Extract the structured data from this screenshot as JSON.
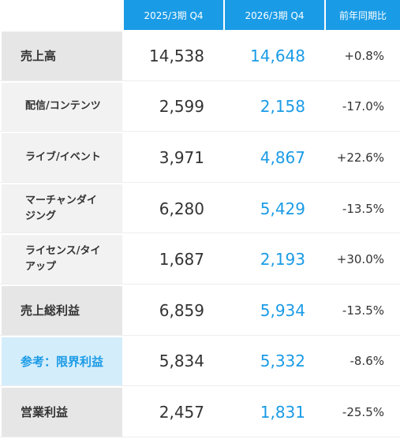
{
  "table": {
    "columns": [
      "2025/3期 Q4",
      "2026/3期 Q4",
      "前年同期比"
    ],
    "rows": [
      {
        "label": "売上高",
        "kind": "main",
        "cells": [
          "14,538",
          "14,648",
          "+0.8%"
        ]
      },
      {
        "label": "配信/コンテンツ",
        "kind": "sub",
        "cells": [
          "2,599",
          "2,158",
          "-17.0%"
        ]
      },
      {
        "label": "ライブ/イベント",
        "kind": "sub",
        "cells": [
          "3,971",
          "4,867",
          "+22.6%"
        ]
      },
      {
        "label": "マーチャンダイジング",
        "kind": "sub",
        "cells": [
          "6,280",
          "5,429",
          "-13.5%"
        ]
      },
      {
        "label": "ライセンス/タイアップ",
        "kind": "sub",
        "cells": [
          "1,687",
          "2,193",
          "+30.0%"
        ]
      },
      {
        "label": "売上総利益",
        "kind": "main",
        "cells": [
          "6,859",
          "5,934",
          "-13.5%"
        ]
      },
      {
        "label": "参考：限界利益",
        "kind": "ref",
        "cells": [
          "5,834",
          "5,332",
          "-8.6%"
        ]
      },
      {
        "label": "営業利益",
        "kind": "main",
        "cells": [
          "2,457",
          "1,831",
          "-25.5%"
        ]
      }
    ]
  }
}
